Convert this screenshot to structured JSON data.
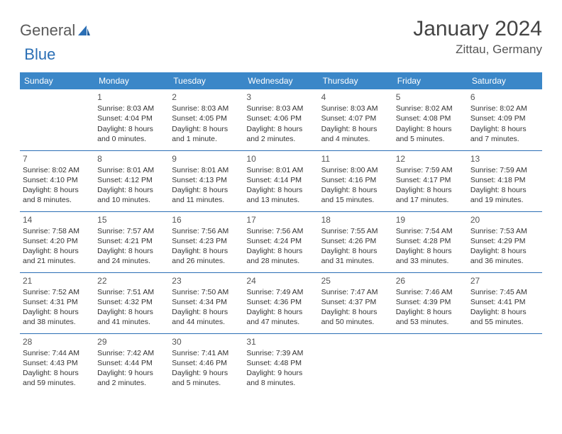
{
  "brand": {
    "part1": "General",
    "part2": "Blue"
  },
  "title": "January 2024",
  "location": "Zittau, Germany",
  "colors": {
    "header_bg": "#3b87c8",
    "header_text": "#ffffff",
    "border": "#2b6fb5",
    "logo_gray": "#5a5a5a",
    "logo_blue": "#2b6fb5",
    "text": "#333333",
    "background": "#ffffff"
  },
  "weekdays": [
    "Sunday",
    "Monday",
    "Tuesday",
    "Wednesday",
    "Thursday",
    "Friday",
    "Saturday"
  ],
  "weeks": [
    [
      null,
      {
        "n": "1",
        "sr": "Sunrise: 8:03 AM",
        "ss": "Sunset: 4:04 PM",
        "d1": "Daylight: 8 hours",
        "d2": "and 0 minutes."
      },
      {
        "n": "2",
        "sr": "Sunrise: 8:03 AM",
        "ss": "Sunset: 4:05 PM",
        "d1": "Daylight: 8 hours",
        "d2": "and 1 minute."
      },
      {
        "n": "3",
        "sr": "Sunrise: 8:03 AM",
        "ss": "Sunset: 4:06 PM",
        "d1": "Daylight: 8 hours",
        "d2": "and 2 minutes."
      },
      {
        "n": "4",
        "sr": "Sunrise: 8:03 AM",
        "ss": "Sunset: 4:07 PM",
        "d1": "Daylight: 8 hours",
        "d2": "and 4 minutes."
      },
      {
        "n": "5",
        "sr": "Sunrise: 8:02 AM",
        "ss": "Sunset: 4:08 PM",
        "d1": "Daylight: 8 hours",
        "d2": "and 5 minutes."
      },
      {
        "n": "6",
        "sr": "Sunrise: 8:02 AM",
        "ss": "Sunset: 4:09 PM",
        "d1": "Daylight: 8 hours",
        "d2": "and 7 minutes."
      }
    ],
    [
      {
        "n": "7",
        "sr": "Sunrise: 8:02 AM",
        "ss": "Sunset: 4:10 PM",
        "d1": "Daylight: 8 hours",
        "d2": "and 8 minutes."
      },
      {
        "n": "8",
        "sr": "Sunrise: 8:01 AM",
        "ss": "Sunset: 4:12 PM",
        "d1": "Daylight: 8 hours",
        "d2": "and 10 minutes."
      },
      {
        "n": "9",
        "sr": "Sunrise: 8:01 AM",
        "ss": "Sunset: 4:13 PM",
        "d1": "Daylight: 8 hours",
        "d2": "and 11 minutes."
      },
      {
        "n": "10",
        "sr": "Sunrise: 8:01 AM",
        "ss": "Sunset: 4:14 PM",
        "d1": "Daylight: 8 hours",
        "d2": "and 13 minutes."
      },
      {
        "n": "11",
        "sr": "Sunrise: 8:00 AM",
        "ss": "Sunset: 4:16 PM",
        "d1": "Daylight: 8 hours",
        "d2": "and 15 minutes."
      },
      {
        "n": "12",
        "sr": "Sunrise: 7:59 AM",
        "ss": "Sunset: 4:17 PM",
        "d1": "Daylight: 8 hours",
        "d2": "and 17 minutes."
      },
      {
        "n": "13",
        "sr": "Sunrise: 7:59 AM",
        "ss": "Sunset: 4:18 PM",
        "d1": "Daylight: 8 hours",
        "d2": "and 19 minutes."
      }
    ],
    [
      {
        "n": "14",
        "sr": "Sunrise: 7:58 AM",
        "ss": "Sunset: 4:20 PM",
        "d1": "Daylight: 8 hours",
        "d2": "and 21 minutes."
      },
      {
        "n": "15",
        "sr": "Sunrise: 7:57 AM",
        "ss": "Sunset: 4:21 PM",
        "d1": "Daylight: 8 hours",
        "d2": "and 24 minutes."
      },
      {
        "n": "16",
        "sr": "Sunrise: 7:56 AM",
        "ss": "Sunset: 4:23 PM",
        "d1": "Daylight: 8 hours",
        "d2": "and 26 minutes."
      },
      {
        "n": "17",
        "sr": "Sunrise: 7:56 AM",
        "ss": "Sunset: 4:24 PM",
        "d1": "Daylight: 8 hours",
        "d2": "and 28 minutes."
      },
      {
        "n": "18",
        "sr": "Sunrise: 7:55 AM",
        "ss": "Sunset: 4:26 PM",
        "d1": "Daylight: 8 hours",
        "d2": "and 31 minutes."
      },
      {
        "n": "19",
        "sr": "Sunrise: 7:54 AM",
        "ss": "Sunset: 4:28 PM",
        "d1": "Daylight: 8 hours",
        "d2": "and 33 minutes."
      },
      {
        "n": "20",
        "sr": "Sunrise: 7:53 AM",
        "ss": "Sunset: 4:29 PM",
        "d1": "Daylight: 8 hours",
        "d2": "and 36 minutes."
      }
    ],
    [
      {
        "n": "21",
        "sr": "Sunrise: 7:52 AM",
        "ss": "Sunset: 4:31 PM",
        "d1": "Daylight: 8 hours",
        "d2": "and 38 minutes."
      },
      {
        "n": "22",
        "sr": "Sunrise: 7:51 AM",
        "ss": "Sunset: 4:32 PM",
        "d1": "Daylight: 8 hours",
        "d2": "and 41 minutes."
      },
      {
        "n": "23",
        "sr": "Sunrise: 7:50 AM",
        "ss": "Sunset: 4:34 PM",
        "d1": "Daylight: 8 hours",
        "d2": "and 44 minutes."
      },
      {
        "n": "24",
        "sr": "Sunrise: 7:49 AM",
        "ss": "Sunset: 4:36 PM",
        "d1": "Daylight: 8 hours",
        "d2": "and 47 minutes."
      },
      {
        "n": "25",
        "sr": "Sunrise: 7:47 AM",
        "ss": "Sunset: 4:37 PM",
        "d1": "Daylight: 8 hours",
        "d2": "and 50 minutes."
      },
      {
        "n": "26",
        "sr": "Sunrise: 7:46 AM",
        "ss": "Sunset: 4:39 PM",
        "d1": "Daylight: 8 hours",
        "d2": "and 53 minutes."
      },
      {
        "n": "27",
        "sr": "Sunrise: 7:45 AM",
        "ss": "Sunset: 4:41 PM",
        "d1": "Daylight: 8 hours",
        "d2": "and 55 minutes."
      }
    ],
    [
      {
        "n": "28",
        "sr": "Sunrise: 7:44 AM",
        "ss": "Sunset: 4:43 PM",
        "d1": "Daylight: 8 hours",
        "d2": "and 59 minutes."
      },
      {
        "n": "29",
        "sr": "Sunrise: 7:42 AM",
        "ss": "Sunset: 4:44 PM",
        "d1": "Daylight: 9 hours",
        "d2": "and 2 minutes."
      },
      {
        "n": "30",
        "sr": "Sunrise: 7:41 AM",
        "ss": "Sunset: 4:46 PM",
        "d1": "Daylight: 9 hours",
        "d2": "and 5 minutes."
      },
      {
        "n": "31",
        "sr": "Sunrise: 7:39 AM",
        "ss": "Sunset: 4:48 PM",
        "d1": "Daylight: 9 hours",
        "d2": "and 8 minutes."
      },
      null,
      null,
      null
    ]
  ]
}
